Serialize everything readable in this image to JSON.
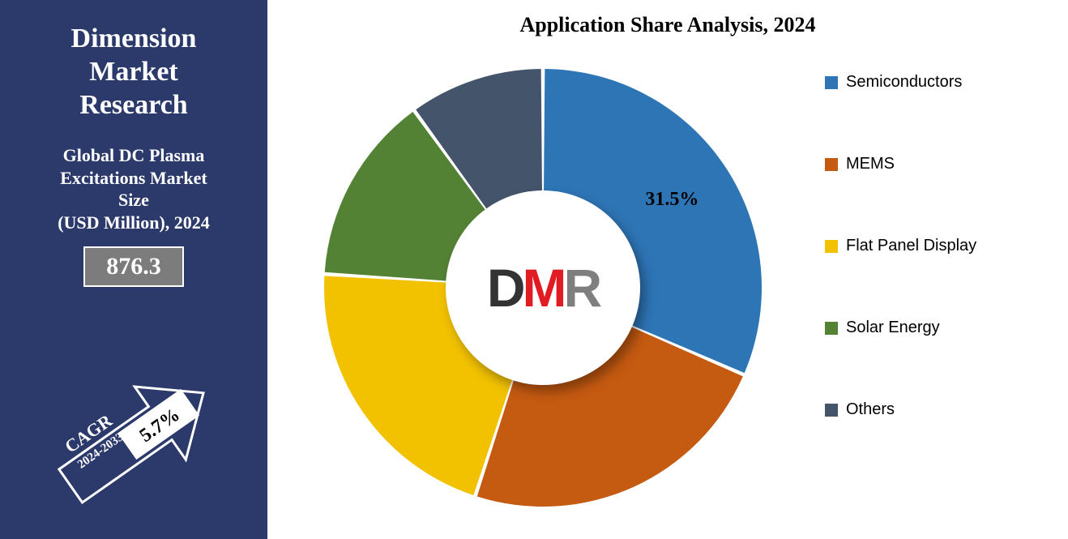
{
  "sidebar": {
    "bg_color": "#2b3a6b",
    "title_lines": [
      "Dimension",
      "Market",
      "Research"
    ],
    "subtitle_lines": [
      "Global DC Plasma",
      "Excitations Market",
      "Size",
      "(USD Million), 2024"
    ],
    "value": "876.3",
    "value_box_bg": "#7c7c7c",
    "arrow": {
      "cagr_label": "CAGR",
      "cagr_period": "2024-2033",
      "cagr_value": "5.7%",
      "outline_color": "#ffffff",
      "value_bg": "#ffffff",
      "value_color": "#000000"
    }
  },
  "chart": {
    "type": "donut",
    "title": "Application Share Analysis, 2024",
    "title_fontsize": 26,
    "background_color": "#ffffff",
    "center_radius_ratio": 0.43,
    "start_angle_deg": -90,
    "gap_deg": 1,
    "labeled_slice": {
      "index": 0,
      "text": "31.5%",
      "fontsize": 24
    },
    "slices": [
      {
        "name": "Semiconductors",
        "value": 31.5,
        "color": "#2e75b6"
      },
      {
        "name": "MEMS",
        "value": 23.5,
        "color": "#c55a11"
      },
      {
        "name": "Flat Panel Display",
        "value": 21.0,
        "color": "#f2c200"
      },
      {
        "name": "Solar Energy",
        "value": 14.0,
        "color": "#548235"
      },
      {
        "name": "Others",
        "value": 10.0,
        "color": "#44546a"
      }
    ],
    "logo": {
      "letters": [
        {
          "char": "D",
          "color": "#333333"
        },
        {
          "char": "M",
          "color": "#e01b22"
        },
        {
          "char": "R",
          "color": "#7f7f7f"
        }
      ],
      "bg": "#ffffff"
    },
    "legend_fontsize": 20
  }
}
